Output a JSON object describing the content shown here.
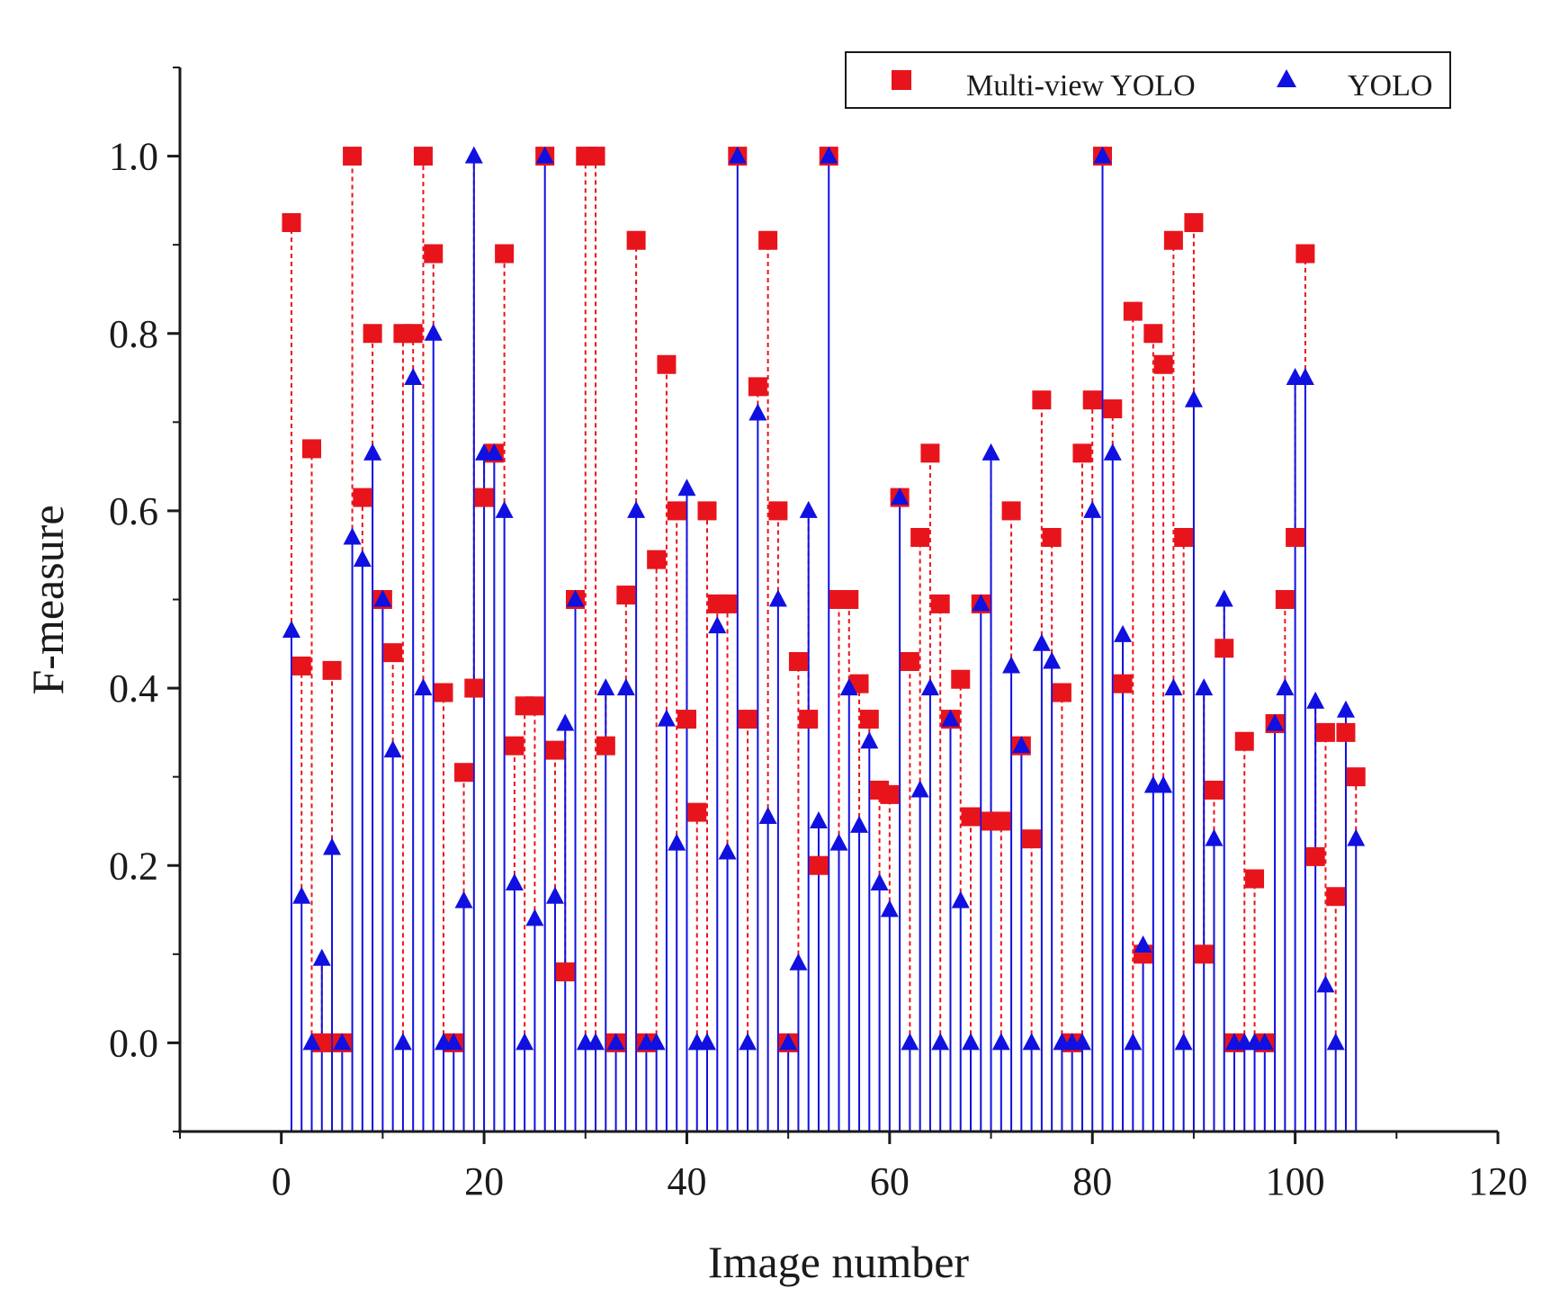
{
  "chart_data": {
    "type": "scatter",
    "style": "stem",
    "xlabel": "Image number",
    "ylabel": "F-measure",
    "xlim": [
      -10,
      120
    ],
    "ylim": [
      -0.1,
      1.1
    ],
    "xticks": [
      0,
      20,
      40,
      60,
      80,
      100,
      120
    ],
    "yticks": [
      0.0,
      0.2,
      0.4,
      0.6,
      0.8,
      1.0
    ],
    "x_tick_labels": [
      "0",
      "20",
      "40",
      "60",
      "80",
      "100",
      "120"
    ],
    "y_tick_labels": [
      "0.0",
      "0.2",
      "0.4",
      "0.6",
      "0.8",
      "1.0"
    ],
    "grid": false,
    "legend_position": "top-right",
    "x": [
      1,
      2,
      3,
      4,
      5,
      6,
      7,
      8,
      9,
      10,
      11,
      12,
      13,
      14,
      15,
      16,
      17,
      18,
      19,
      20,
      21,
      22,
      23,
      24,
      25,
      26,
      27,
      28,
      29,
      30,
      31,
      32,
      33,
      34,
      35,
      36,
      37,
      38,
      39,
      40,
      41,
      42,
      43,
      44,
      45,
      46,
      47,
      48,
      49,
      50,
      51,
      52,
      53,
      54,
      55,
      56,
      57,
      58,
      59,
      60,
      61,
      62,
      63,
      64,
      65,
      66,
      67,
      68,
      69,
      70,
      71,
      72,
      73,
      74,
      75,
      76,
      77,
      78,
      79,
      80,
      81,
      82,
      83,
      84,
      85,
      86,
      87,
      88,
      89,
      90,
      91,
      92,
      93,
      94,
      95,
      96,
      97,
      98,
      99,
      100,
      101,
      102,
      103,
      104,
      105,
      106
    ],
    "series": [
      {
        "name": "Multi-view YOLO",
        "color": "#e8141c",
        "marker": "square",
        "values": [
          0.925,
          0.425,
          0.67,
          0.0,
          0.42,
          0.0,
          1.0,
          0.615,
          0.8,
          0.5,
          0.44,
          0.8,
          0.8,
          1.0,
          0.89,
          0.395,
          0.0,
          0.305,
          0.4,
          0.615,
          0.665,
          0.89,
          0.335,
          0.38,
          0.38,
          1.0,
          0.33,
          0.08,
          0.5,
          1.0,
          1.0,
          0.335,
          0.0,
          0.505,
          0.905,
          0.0,
          0.545,
          0.765,
          0.6,
          0.365,
          0.26,
          0.6,
          0.495,
          0.495,
          1.0,
          0.365,
          0.74,
          0.905,
          0.6,
          0.0,
          0.43,
          0.365,
          0.2,
          1.0,
          0.5,
          0.5,
          0.405,
          0.365,
          0.285,
          0.28,
          0.615,
          0.43,
          0.57,
          0.665,
          0.495,
          0.365,
          0.41,
          0.255,
          0.495,
          0.25,
          0.25,
          0.6,
          0.335,
          0.23,
          0.725,
          0.57,
          0.395,
          0.0,
          0.665,
          0.725,
          1.0,
          0.715,
          0.405,
          0.825,
          0.1,
          0.8,
          0.765,
          0.905,
          0.57,
          0.925,
          0.1,
          0.285,
          0.445,
          0.0,
          0.34,
          0.185,
          0.0,
          0.36,
          0.5,
          0.57,
          0.89,
          0.21,
          0.35,
          0.165,
          0.35,
          0.3
        ]
      },
      {
        "name": "YOLO",
        "color": "#1010e0",
        "marker": "triangle",
        "values": [
          0.465,
          0.165,
          0.0,
          0.095,
          0.22,
          0.0,
          0.57,
          0.545,
          0.665,
          0.5,
          0.33,
          0.0,
          0.75,
          0.4,
          0.8,
          0.0,
          0.0,
          0.16,
          1.0,
          0.665,
          0.665,
          0.6,
          0.18,
          0.0,
          0.14,
          1.0,
          0.165,
          0.36,
          0.5,
          0.0,
          0.0,
          0.4,
          0.0,
          0.4,
          0.6,
          0.0,
          0.0,
          0.365,
          0.225,
          0.625,
          0.0,
          0.0,
          0.47,
          0.215,
          1.0,
          0.0,
          0.71,
          0.255,
          0.5,
          0.0,
          0.09,
          0.6,
          0.25,
          1.0,
          0.225,
          0.4,
          0.245,
          0.34,
          0.18,
          0.15,
          0.615,
          0.0,
          0.285,
          0.4,
          0.0,
          0.365,
          0.16,
          0.0,
          0.495,
          0.665,
          0.0,
          0.425,
          0.335,
          0.0,
          0.45,
          0.43,
          0.0,
          0.0,
          0.0,
          0.6,
          1.0,
          0.665,
          0.46,
          0.0,
          0.11,
          0.29,
          0.29,
          0.4,
          0.0,
          0.725,
          0.4,
          0.23,
          0.5,
          0.0,
          0.0,
          0.0,
          0.0,
          0.36,
          0.4,
          0.75,
          0.75,
          0.385,
          0.065,
          0.0,
          0.375,
          0.23
        ]
      }
    ]
  }
}
